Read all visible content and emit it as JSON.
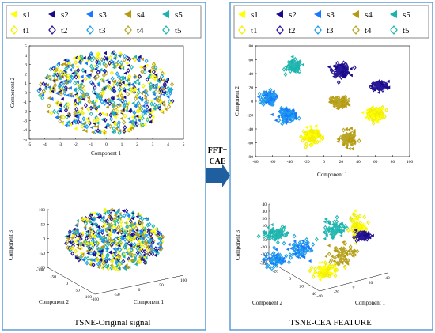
{
  "colors": {
    "s1": "#ffff00",
    "s2": "#1a0a8a",
    "s3": "#1a78ff",
    "s4": "#b89a10",
    "s5": "#18b4b0",
    "t1": "#f2f000",
    "t2": "#2a1a9a",
    "t3": "#1fa0e8",
    "t4": "#b8a82a",
    "t5": "#2ab8b0",
    "frame": "#5b9bd5",
    "arrow": "#1f5fa0"
  },
  "legend": {
    "row1": [
      "s1",
      "s2",
      "s3",
      "s4",
      "s5"
    ],
    "row2": [
      "t1",
      "t2",
      "t3",
      "t4",
      "t5"
    ]
  },
  "arrow": {
    "line1": "FFT+",
    "line2": "CAE"
  },
  "left_panel": {
    "caption": "TSNE-Original signal"
  },
  "right_panel": {
    "caption": "TSNE-CEA FEATURE"
  },
  "chart_data": [
    {
      "type": "scatter",
      "panel": "left-top",
      "xlabel": "Component 1",
      "ylabel": "Component 2",
      "xlim": [
        -5,
        5
      ],
      "ylim": [
        -5,
        5
      ],
      "xticks": [
        -5,
        -4,
        -3,
        -2,
        -1,
        0,
        1,
        2,
        3,
        4,
        5
      ],
      "yticks": [
        -5,
        -4,
        -3,
        -2,
        -1,
        0,
        1,
        2,
        3,
        4,
        5
      ],
      "grid": false,
      "description_of_data": "all 10 classes fully intermixed in a single disc of radius about 4.5 centred at (0,0)",
      "series": [
        {
          "name": "s1",
          "center": [
            0,
            0
          ],
          "radius": 4.5
        },
        {
          "name": "s2",
          "center": [
            0,
            0
          ],
          "radius": 4.5
        },
        {
          "name": "s3",
          "center": [
            0,
            0
          ],
          "radius": 4.5
        },
        {
          "name": "s4",
          "center": [
            0,
            0
          ],
          "radius": 4.5
        },
        {
          "name": "s5",
          "center": [
            0,
            0
          ],
          "radius": 4.5
        },
        {
          "name": "t1",
          "center": [
            0,
            0
          ],
          "radius": 4.5
        },
        {
          "name": "t2",
          "center": [
            0,
            0
          ],
          "radius": 4.5
        },
        {
          "name": "t3",
          "center": [
            0,
            0
          ],
          "radius": 4.5
        },
        {
          "name": "t4",
          "center": [
            0,
            0
          ],
          "radius": 4.5
        },
        {
          "name": "t5",
          "center": [
            0,
            0
          ],
          "radius": 4.5
        }
      ]
    },
    {
      "type": "scatter3d",
      "panel": "left-bottom",
      "xlabel": "Component 1",
      "ylabel": "Component 2",
      "zlabel": "Component 3",
      "xticks": [
        -100,
        -50,
        0,
        50,
        100
      ],
      "yticks": [
        -100,
        -50,
        0,
        50,
        100
      ],
      "zticks": [
        -100,
        -50,
        0,
        50,
        100
      ],
      "description_of_data": "all classes intermixed in a single ellipsoidal cloud"
    },
    {
      "type": "scatter",
      "panel": "right-top",
      "xlabel": "Component 1",
      "ylabel": "Component 2",
      "xlim": [
        -80,
        100
      ],
      "ylim": [
        -80,
        80
      ],
      "xticks": [
        -80,
        -60,
        -40,
        -20,
        0,
        20,
        40,
        60,
        80,
        100
      ],
      "yticks": [
        -80,
        -60,
        -40,
        -20,
        0,
        20,
        40,
        60,
        80
      ],
      "grid": false,
      "series": [
        {
          "name": "s5",
          "center": [
            -35,
            50
          ],
          "spread": [
            8,
            8
          ]
        },
        {
          "name": "s2",
          "center": [
            20,
            45
          ],
          "spread": [
            9,
            8
          ]
        },
        {
          "name": "s2",
          "center": [
            65,
            22
          ],
          "spread": [
            9,
            6
          ]
        },
        {
          "name": "s3",
          "center": [
            -65,
            5
          ],
          "spread": [
            7,
            9
          ]
        },
        {
          "name": "s4",
          "center": [
            18,
            -2
          ],
          "spread": [
            9,
            7
          ]
        },
        {
          "name": "s1",
          "center": [
            60,
            -18
          ],
          "spread": [
            9,
            8
          ]
        },
        {
          "name": "s3",
          "center": [
            -42,
            -20
          ],
          "spread": [
            9,
            8
          ]
        },
        {
          "name": "s1",
          "center": [
            -15,
            -50
          ],
          "spread": [
            9,
            10
          ]
        },
        {
          "name": "s4",
          "center": [
            28,
            -55
          ],
          "spread": [
            8,
            10
          ]
        }
      ]
    },
    {
      "type": "scatter3d",
      "panel": "right-bottom",
      "xlabel": "Component 1",
      "ylabel": "Component 2",
      "zlabel": "Component 3",
      "xticks": [
        -40,
        -20,
        0,
        20,
        40
      ],
      "yticks": [
        -40,
        -20,
        0,
        20,
        40
      ],
      "zticks": [
        -40,
        -30,
        -20,
        -10,
        0,
        10,
        20,
        30,
        40
      ],
      "description_of_data": "classes form separate colored clusters"
    }
  ]
}
